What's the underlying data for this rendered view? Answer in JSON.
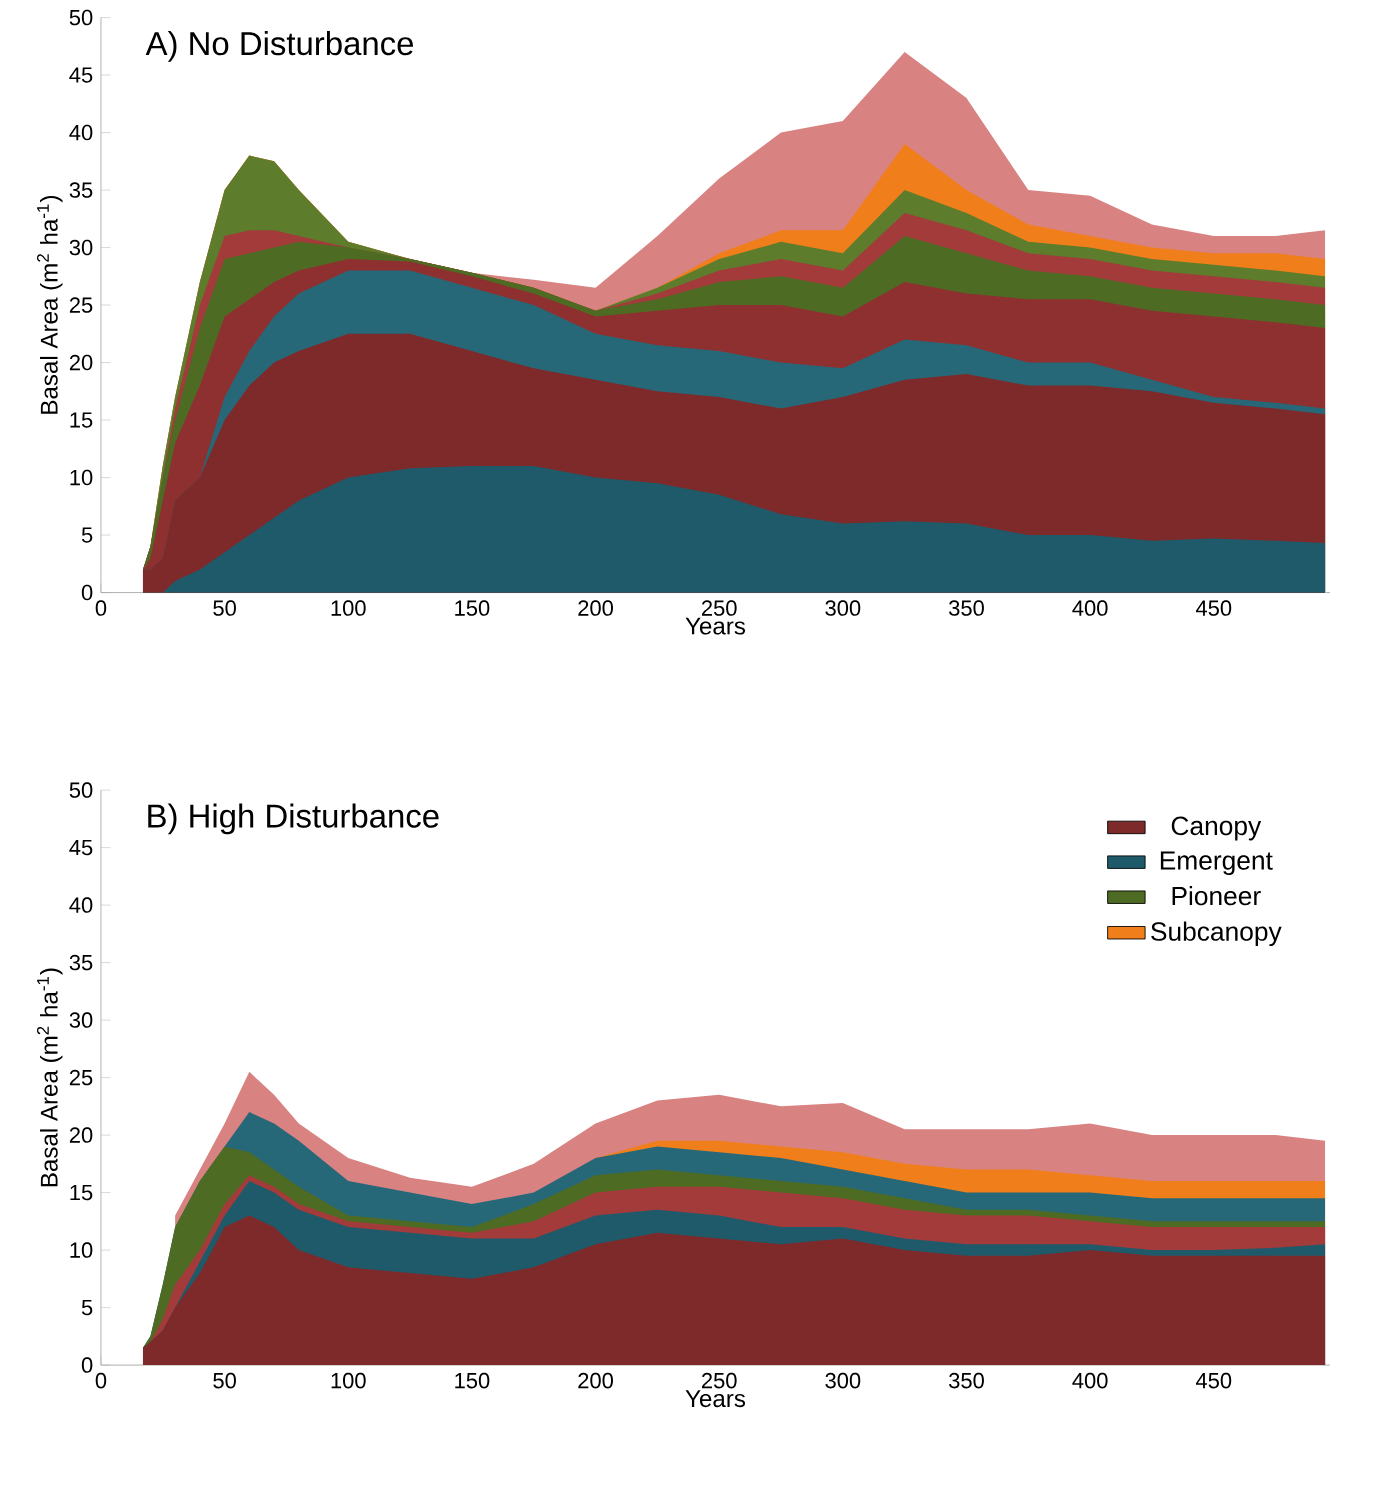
{
  "chart_data": [
    {
      "type": "area",
      "stacked": true,
      "title": "A) No Disturbance",
      "xlabel": "Years",
      "ylabel": "Basal Area (m$^{2}$ ha$^{-1}$)",
      "x": [
        17,
        20,
        25,
        30,
        40,
        50,
        60,
        70,
        80,
        100,
        125,
        150,
        175,
        200,
        225,
        250,
        275,
        300,
        325,
        350,
        375,
        400,
        425,
        450,
        475,
        495
      ],
      "xlim": [
        0,
        497
      ],
      "ylim": [
        0,
        50
      ],
      "xticks": [
        0,
        50,
        100,
        150,
        200,
        250,
        300,
        350,
        400,
        450
      ],
      "yticks": [
        0,
        5,
        10,
        15,
        20,
        25,
        30,
        35,
        40,
        45,
        50
      ],
      "series": [
        {
          "color": "#1f5a6b",
          "values": [
            0,
            0,
            0,
            1,
            2,
            3.5,
            5,
            6.5,
            8,
            10,
            10.8,
            11,
            11,
            10,
            9.5,
            8.5,
            6.8,
            6,
            6.2,
            6,
            5,
            5,
            4.5,
            4.7,
            4.5,
            4.3
          ]
        },
        {
          "color": "#7e2a2a",
          "values": [
            2,
            2,
            3,
            7,
            8,
            11.5,
            13,
            13.5,
            13,
            12.5,
            11.7,
            10,
            8.5,
            8.5,
            8,
            8.5,
            9.2,
            11,
            12.3,
            13,
            13,
            13,
            13,
            11.8,
            11.5,
            11.2
          ]
        },
        {
          "color": "#276878",
          "values": [
            0,
            0,
            0,
            0,
            0,
            2,
            3,
            4,
            5,
            5.5,
            5.5,
            5.5,
            5.5,
            4,
            4,
            4,
            4,
            2.5,
            3.5,
            2.5,
            2,
            2,
            1,
            0.5,
            0.5,
            0.5
          ]
        },
        {
          "color": "#8f3030",
          "values": [
            0,
            1,
            5,
            5,
            8,
            7,
            4.5,
            3,
            2,
            1,
            0.8,
            1,
            1,
            1.5,
            3,
            4,
            5,
            4.5,
            5,
            4.5,
            5.5,
            5.5,
            6,
            7,
            7,
            7
          ]
        },
        {
          "color": "#4e6b23",
          "values": [
            0,
            1,
            2,
            2,
            5,
            5,
            4,
            3,
            2.5,
            1,
            0.2,
            0.3,
            0.5,
            0.5,
            1,
            2,
            2.5,
            2.5,
            4,
            3.5,
            2.5,
            2,
            2,
            2,
            2,
            2
          ]
        },
        {
          "color": "#a33b3b",
          "values": [
            0,
            0,
            0,
            1,
            2,
            2,
            2,
            1.5,
            0.5,
            0,
            0,
            0,
            0,
            0,
            0.5,
            1,
            1.5,
            1.5,
            2,
            2,
            1.5,
            1.5,
            1.5,
            1.5,
            1.5,
            1.5
          ]
        },
        {
          "color": "#5d7d2c",
          "values": [
            0,
            0,
            1,
            1,
            2,
            4,
            6.5,
            6,
            4,
            0.5,
            0,
            0,
            0,
            0,
            0.5,
            1,
            1.5,
            1.5,
            2,
            1.5,
            1,
            1,
            1,
            1,
            1,
            1
          ]
        },
        {
          "color": "#f07f1b",
          "values": [
            0,
            0,
            0,
            0,
            0,
            0,
            0,
            0,
            0,
            0,
            0,
            0,
            0,
            0,
            0,
            0.5,
            1,
            2,
            4,
            2,
            1.5,
            1,
            1,
            1,
            1.5,
            1.5
          ]
        },
        {
          "color": "#d98282",
          "values": [
            0,
            0,
            0,
            0,
            0,
            0,
            0,
            0,
            0,
            0,
            0,
            0,
            0.7,
            2,
            4.5,
            6.5,
            8.5,
            9.5,
            8,
            8,
            3,
            3.5,
            2,
            1.5,
            1.5,
            2.5
          ]
        }
      ]
    },
    {
      "type": "area",
      "stacked": true,
      "title": "B) High Disturbance",
      "xlabel": "Years",
      "ylabel": "Basal Area (m$^{2}$ ha$^{-1}$)",
      "legend": "top right",
      "x": [
        17,
        20,
        25,
        30,
        40,
        50,
        60,
        70,
        80,
        100,
        125,
        150,
        175,
        200,
        225,
        250,
        275,
        300,
        325,
        350,
        375,
        400,
        425,
        450,
        475,
        495
      ],
      "xlim": [
        0,
        497
      ],
      "ylim": [
        0,
        50
      ],
      "xticks": [
        0,
        50,
        100,
        150,
        200,
        250,
        300,
        350,
        400,
        450
      ],
      "yticks": [
        0,
        5,
        10,
        15,
        20,
        25,
        30,
        35,
        40,
        45,
        50
      ],
      "series": [
        {
          "name": "Canopy",
          "color": "#7e2a2a",
          "values": [
            1.5,
            2,
            3,
            5,
            8,
            12,
            13,
            12,
            10,
            8.5,
            8,
            7.5,
            8.5,
            10.5,
            11.5,
            11,
            10.5,
            11,
            10,
            9.5,
            9.5,
            10,
            9.5,
            9.5,
            9.5,
            9.5
          ]
        },
        {
          "name": "Emergent",
          "color": "#1f5a6b",
          "values": [
            0,
            0,
            0,
            0,
            1,
            1,
            3,
            3,
            3.5,
            3.5,
            3.5,
            3.5,
            2.5,
            2.5,
            2,
            2,
            1.5,
            1,
            1,
            1,
            1,
            0.5,
            0.5,
            0.5,
            0.7,
            1
          ]
        },
        {
          "color": "#a33b3b",
          "values": [
            0,
            0,
            1,
            2,
            1,
            1,
            0.5,
            0.5,
            0.5,
            0.5,
            0.5,
            0.5,
            1.5,
            2,
            2,
            2.5,
            3,
            2.5,
            2.5,
            2.5,
            2.5,
            2,
            2,
            2,
            1.8,
            1.5
          ]
        },
        {
          "name": "Pioneer",
          "color": "#4e6b23",
          "values": [
            0,
            0.5,
            3,
            5,
            6,
            5,
            2,
            1.5,
            1.5,
            0.5,
            0.5,
            0.5,
            1.5,
            1.5,
            1.5,
            1,
            1,
            1,
            1,
            0.5,
            0.5,
            0.5,
            0.5,
            0.5,
            0.5,
            0.5
          ]
        },
        {
          "color": "#276878",
          "values": [
            0,
            0,
            0,
            0,
            0,
            0,
            3.5,
            4,
            4,
            3,
            2.5,
            2,
            1,
            1.5,
            2,
            2,
            2,
            1.5,
            1.5,
            1.5,
            1.5,
            2,
            2,
            2,
            2,
            2
          ]
        },
        {
          "name": "Subcanopy",
          "color": "#f07f1b",
          "values": [
            null,
            null,
            null,
            null,
            null,
            null,
            null,
            null,
            null,
            null,
            null,
            null,
            null,
            0,
            0.5,
            1,
            1,
            1.5,
            1.5,
            2,
            2,
            1.5,
            1.5,
            1.5,
            1.5,
            1.5
          ]
        },
        {
          "color": "#d98282",
          "values": [
            null,
            null,
            null,
            1,
            1,
            2,
            3.5,
            2.5,
            1.5,
            2,
            1.3,
            1.5,
            2.5,
            3,
            3.5,
            4,
            3.5,
            4.3,
            3,
            3.5,
            3.5,
            4.5,
            4,
            4,
            4,
            3.5
          ]
        }
      ]
    }
  ]
}
